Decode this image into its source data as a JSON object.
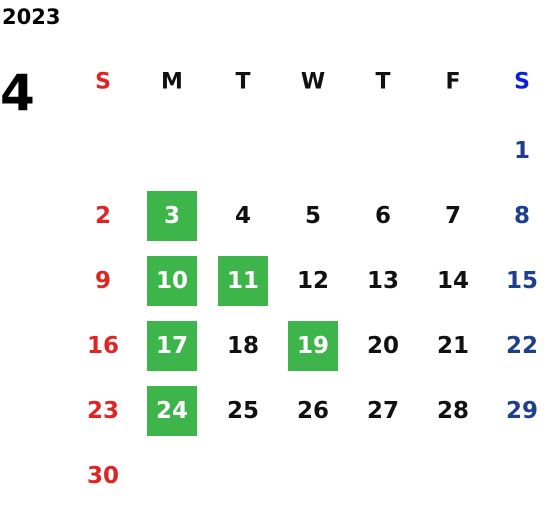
{
  "calendar": {
    "year": "2023",
    "month": "4",
    "weekdays": [
      "S",
      "M",
      "T",
      "W",
      "T",
      "F",
      "S"
    ],
    "weeks": [
      [
        null,
        null,
        null,
        null,
        null,
        null,
        {
          "day": 1
        }
      ],
      [
        {
          "day": 2
        },
        {
          "day": 3,
          "highlight": true
        },
        {
          "day": 4
        },
        {
          "day": 5
        },
        {
          "day": 6
        },
        {
          "day": 7
        },
        {
          "day": 8
        }
      ],
      [
        {
          "day": 9
        },
        {
          "day": 10,
          "highlight": true
        },
        {
          "day": 11,
          "highlight": true
        },
        {
          "day": 12
        },
        {
          "day": 13
        },
        {
          "day": 14
        },
        {
          "day": 15
        }
      ],
      [
        {
          "day": 16
        },
        {
          "day": 17,
          "highlight": true
        },
        {
          "day": 18
        },
        {
          "day": 19,
          "highlight": true
        },
        {
          "day": 20
        },
        {
          "day": 21
        },
        {
          "day": 22
        }
      ],
      [
        {
          "day": 23
        },
        {
          "day": 24,
          "highlight": true
        },
        {
          "day": 25
        },
        {
          "day": 26
        },
        {
          "day": 27
        },
        {
          "day": 28
        },
        {
          "day": 29
        }
      ],
      [
        {
          "day": 30
        }
      ]
    ]
  }
}
